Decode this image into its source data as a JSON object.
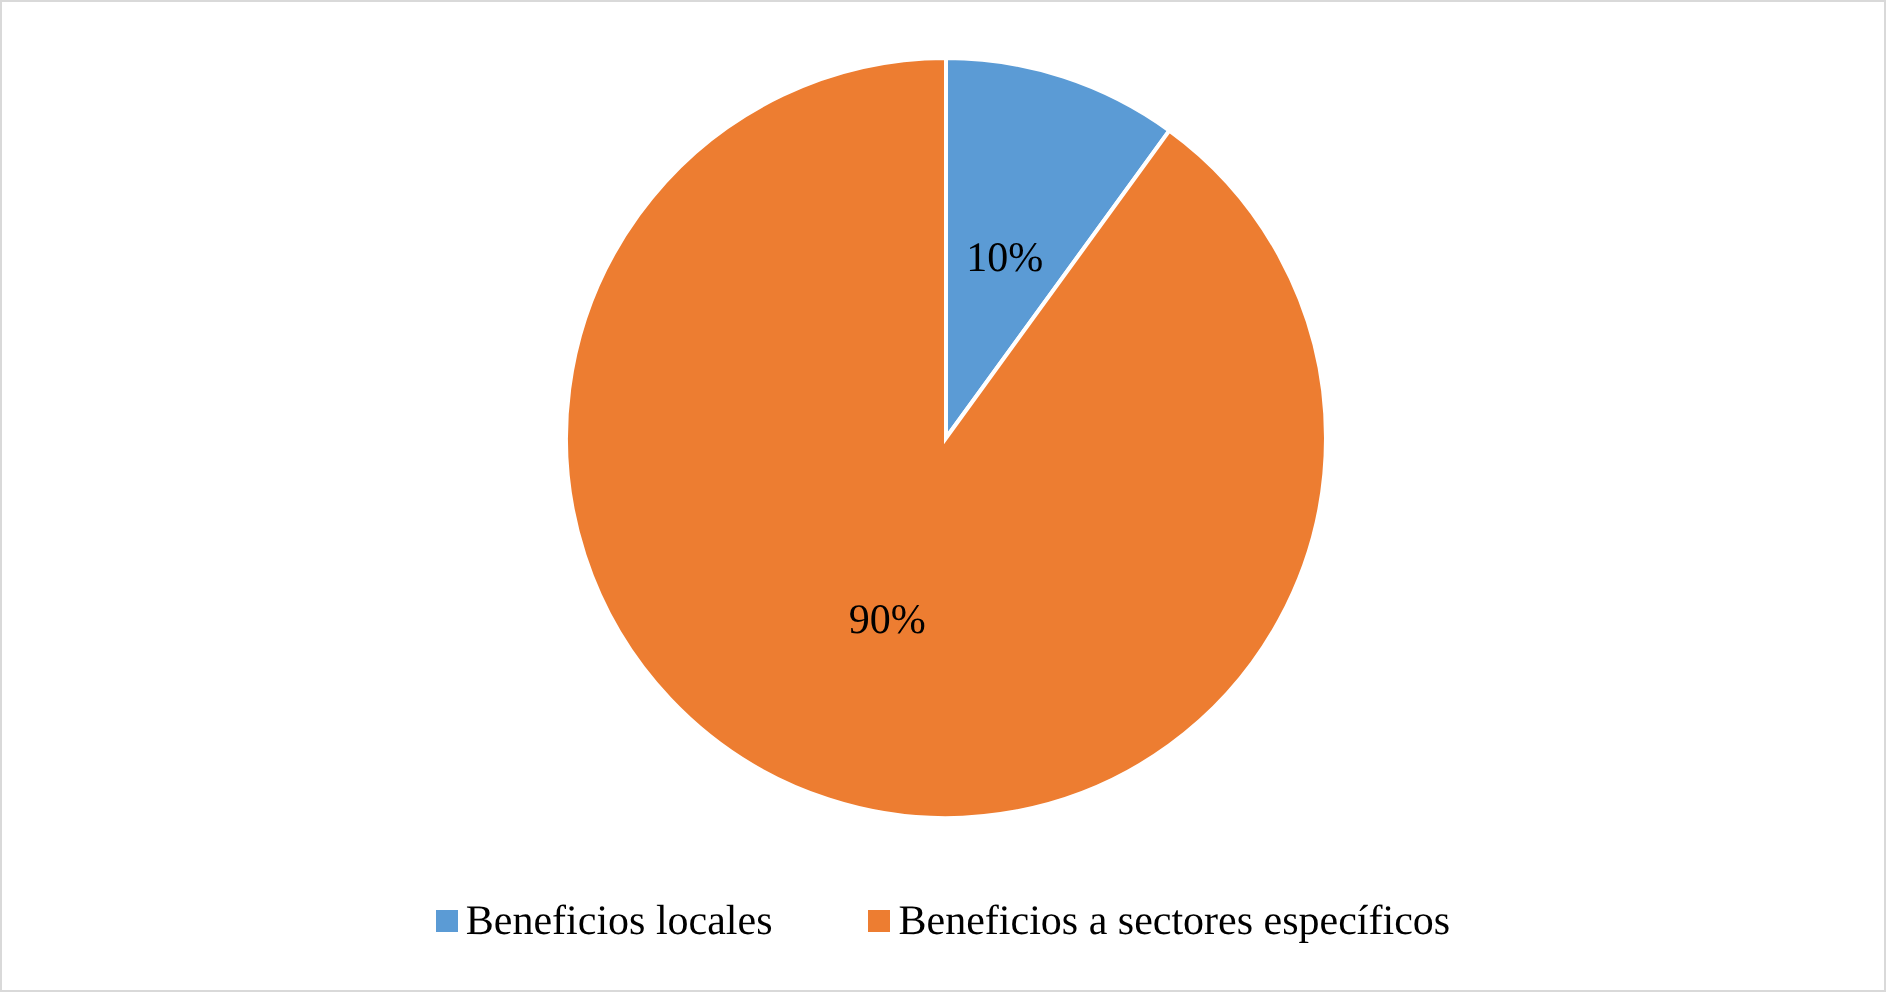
{
  "chart_data": {
    "type": "pie",
    "categories": [
      "Beneficios locales",
      "Beneficios a sectores específicos"
    ],
    "values": [
      10,
      90
    ],
    "colors": [
      "#5b9bd5",
      "#ed7d31"
    ],
    "value_labels": [
      "10%",
      "90%"
    ],
    "legend": "bottom"
  }
}
